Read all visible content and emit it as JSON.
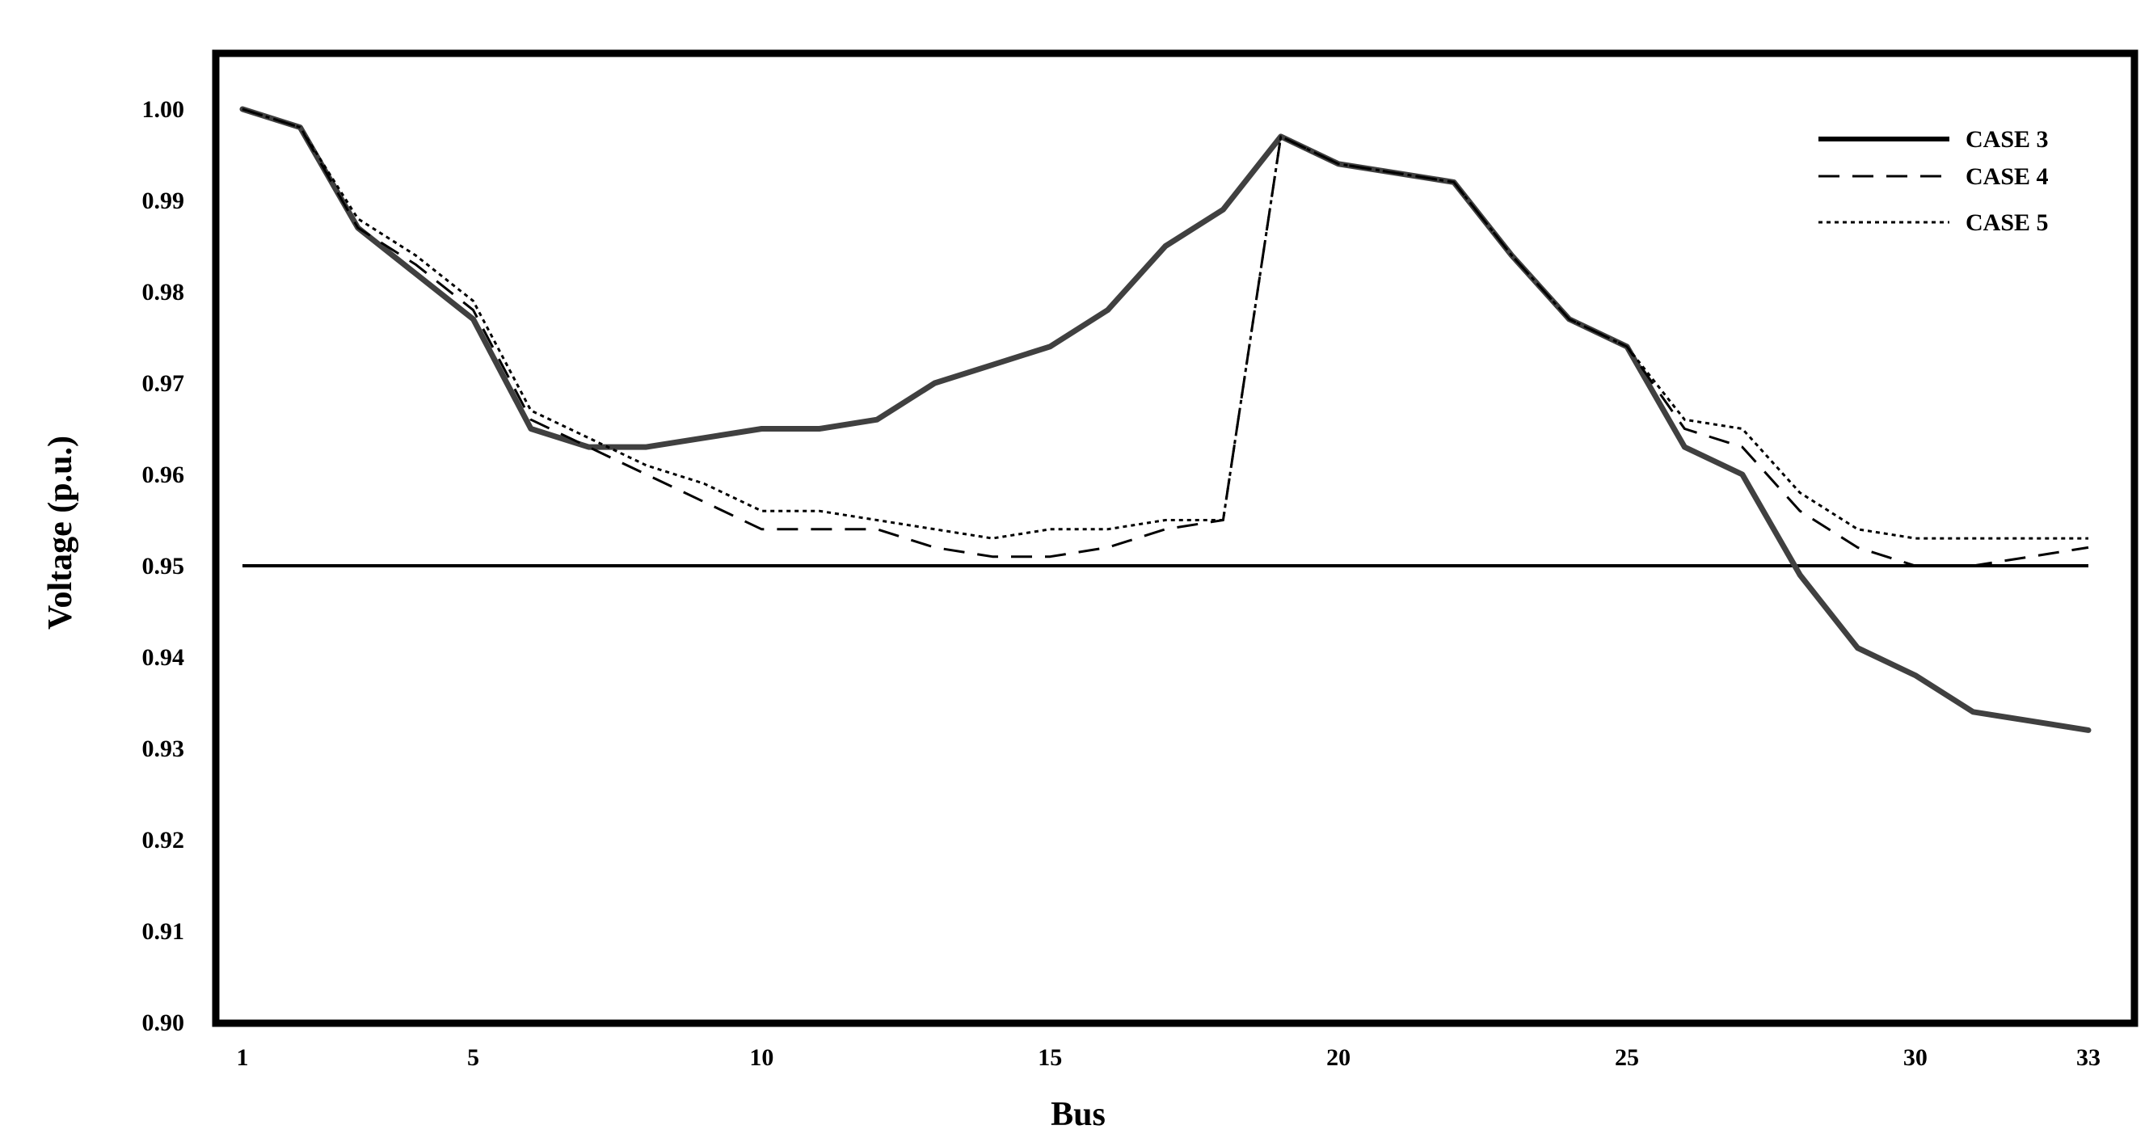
{
  "chart_data": {
    "type": "line",
    "xlabel": "Bus",
    "ylabel": "Voltage (p.u.)",
    "xlim": [
      1,
      33
    ],
    "ylim": [
      0.9,
      1.0
    ],
    "x_ticks": [
      1,
      5,
      10,
      15,
      20,
      25,
      30,
      33
    ],
    "y_ticks": [
      "0.90",
      "0.91",
      "0.92",
      "0.93",
      "0.94",
      "0.95",
      "0.96",
      "0.97",
      "0.98",
      "0.99",
      "1.00"
    ],
    "grid": false,
    "legend_position": "top-right",
    "reference_line": {
      "y": 0.95
    },
    "x": [
      1,
      2,
      3,
      4,
      5,
      6,
      7,
      8,
      9,
      10,
      11,
      12,
      13,
      14,
      15,
      16,
      17,
      18,
      19,
      20,
      21,
      22,
      23,
      24,
      25,
      26,
      27,
      28,
      29,
      30,
      31,
      32,
      33
    ],
    "series": [
      {
        "name": "CASE 3",
        "style": "solid",
        "color": "#404040",
        "values": [
          1.0,
          0.998,
          0.987,
          0.982,
          0.977,
          0.965,
          0.963,
          0.963,
          0.964,
          0.965,
          0.965,
          0.966,
          0.97,
          0.972,
          0.974,
          0.978,
          0.985,
          0.989,
          0.997,
          0.994,
          0.993,
          0.992,
          0.984,
          0.977,
          0.974,
          0.963,
          0.96,
          0.949,
          0.941,
          0.938,
          0.934,
          0.933,
          0.932
        ]
      },
      {
        "name": "CASE 4",
        "style": "dashed",
        "color": "#000000",
        "values": [
          1.0,
          0.998,
          0.987,
          0.983,
          0.978,
          0.966,
          0.963,
          0.96,
          0.957,
          0.954,
          0.954,
          0.954,
          0.952,
          0.951,
          0.951,
          0.952,
          0.954,
          0.955,
          0.997,
          0.994,
          0.993,
          0.992,
          0.984,
          0.977,
          0.974,
          0.965,
          0.963,
          0.956,
          0.952,
          0.95,
          0.95,
          0.951,
          0.952
        ]
      },
      {
        "name": "CASE 5",
        "style": "dotted",
        "color": "#000000",
        "values": [
          1.0,
          0.998,
          0.988,
          0.984,
          0.979,
          0.967,
          0.964,
          0.961,
          0.959,
          0.956,
          0.956,
          0.955,
          0.954,
          0.953,
          0.954,
          0.954,
          0.955,
          0.955,
          0.997,
          0.994,
          0.993,
          0.992,
          0.984,
          0.977,
          0.974,
          0.966,
          0.965,
          0.958,
          0.954,
          0.953,
          0.953,
          0.953,
          0.953
        ]
      }
    ]
  }
}
